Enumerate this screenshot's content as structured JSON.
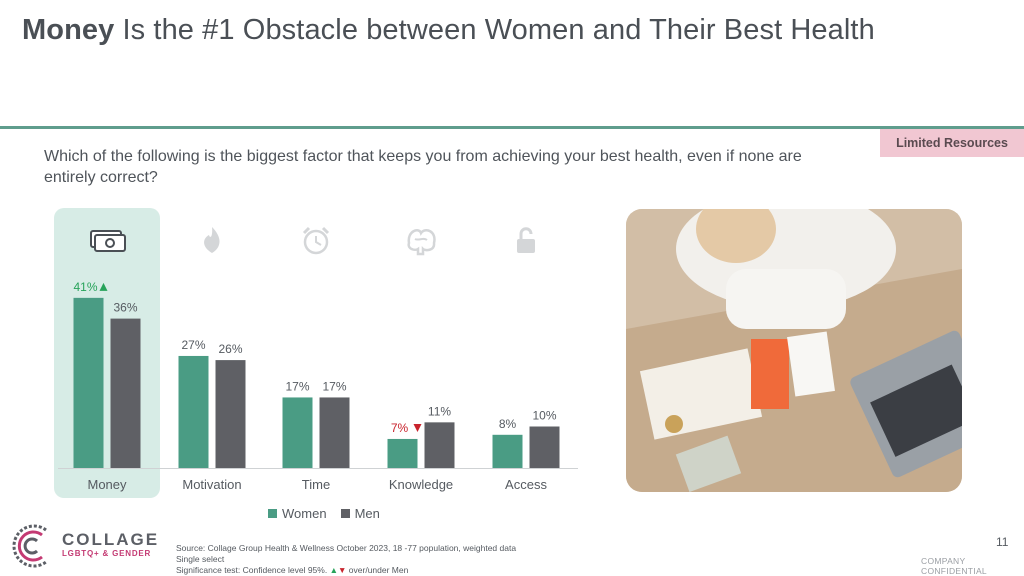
{
  "title": {
    "bold": "Money",
    "rest": " Is the #1 Obstacle between Women and Their Best Health"
  },
  "tag": "Limited Resources",
  "question": "Which of the following is the biggest factor that keeps you from achieving your best health, even if none are entirely correct?",
  "colors": {
    "women": "#4a9c84",
    "men": "#5f6065",
    "accent": "#5f9d8d",
    "highlight": "#d7ece6",
    "up": "#27a35a",
    "down": "#c8232c"
  },
  "chart_data": {
    "type": "bar",
    "categories": [
      "Money",
      "Motivation",
      "Time",
      "Knowledge",
      "Access"
    ],
    "icons": [
      "money-icon",
      "flame-icon",
      "alarm-clock-icon",
      "brain-icon",
      "lock-icon"
    ],
    "series": [
      {
        "name": "Women",
        "values": [
          41,
          27,
          17,
          7,
          8
        ],
        "labels": [
          "41%",
          "27%",
          "17%",
          "7%",
          "8%"
        ]
      },
      {
        "name": "Men",
        "values": [
          36,
          26,
          17,
          11,
          10
        ],
        "labels": [
          "36%",
          "26%",
          "17%",
          "11%",
          "10%"
        ]
      }
    ],
    "significance": [
      "up",
      null,
      null,
      "down",
      null
    ],
    "highlight_category": "Money"
  },
  "legend": {
    "women": "Women",
    "men": "Men"
  },
  "source": {
    "line1": "Source: Collage Group Health & Wellness October 2023, 18   -77 population, weighted data",
    "line2": "Single select",
    "line3_prefix": "Significance test: Confidence level 95%.",
    "line3_suffix": "over/under Men"
  },
  "logo": {
    "name": "COLLAGE",
    "sub": "LGBTQ+ & GENDER"
  },
  "page_number": "11",
  "confidential": "COMPANY CONFIDENTIAL"
}
